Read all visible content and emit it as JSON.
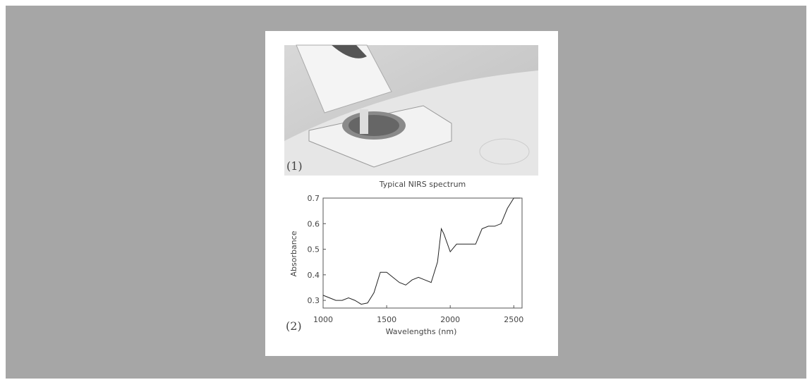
{
  "panel_labels": [
    "(1)",
    "(2)"
  ],
  "chart_data": {
    "type": "line",
    "title": "Typical NIRS spectrum",
    "x_label": "Wavelengths (nm)",
    "y_label": "Absorbance",
    "x": [
      1000,
      1050,
      1100,
      1150,
      1200,
      1250,
      1300,
      1350,
      1400,
      1450,
      1500,
      1550,
      1600,
      1650,
      1700,
      1750,
      1800,
      1850,
      1900,
      1930,
      1950,
      2000,
      2050,
      2100,
      2150,
      2200,
      2250,
      2300,
      2350,
      2400,
      2450,
      2500,
      2550
    ],
    "series": [
      {
        "color": "#222222",
        "values": [
          0.32,
          0.31,
          0.3,
          0.3,
          0.31,
          0.3,
          0.285,
          0.29,
          0.33,
          0.41,
          0.41,
          0.39,
          0.37,
          0.36,
          0.38,
          0.39,
          0.38,
          0.37,
          0.45,
          0.58,
          0.56,
          0.49,
          0.52,
          0.52,
          0.52,
          0.52,
          0.58,
          0.59,
          0.59,
          0.6,
          0.66,
          0.7,
          0.7
        ]
      }
    ],
    "xlim": [
      1000,
      2565
    ],
    "ylim": [
      0.27,
      0.7
    ],
    "xticks": [
      1000,
      1500,
      2000,
      2500
    ],
    "yticks": [
      0.3,
      0.4,
      0.5,
      0.6,
      0.7
    ],
    "grid": false
  }
}
